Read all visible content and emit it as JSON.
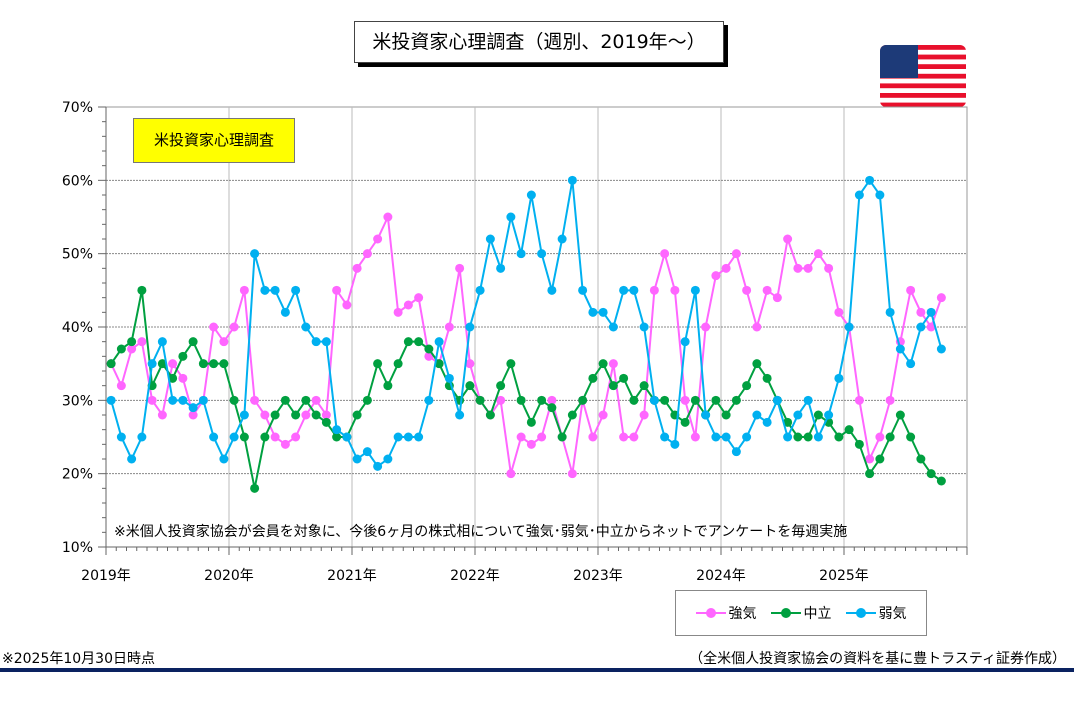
{
  "title": "米投資家心理調査（週別、2019年～）",
  "box_label": "米投資家心理調査",
  "note": "※米個人投資家協会が会員を対象に、今後6ヶ月の株式相について強気･弱気･中立からネットでアンケートを毎週実施",
  "footer_left": "※2025年10月30日時点",
  "footer_right": "（全米個人投資家協会の資料を基に豊トラスティ証券作成）",
  "chart_data": {
    "type": "line",
    "title": "米投資家心理調査（週別、2019年～）",
    "xlabel": "",
    "ylabel": "",
    "ylim": [
      10,
      70
    ],
    "yticks": [
      "10%",
      "20%",
      "30%",
      "40%",
      "50%",
      "60%",
      "70%"
    ],
    "xticks": [
      "2019年",
      "2020年",
      "2021年",
      "2022年",
      "2023年",
      "2024年",
      "2025年"
    ],
    "xlim": [
      2019,
      2026
    ],
    "start_month": "2019-01",
    "frequency": "monthly (approximate, sampled from weekly)",
    "grid": true,
    "legend_position": "bottom-right",
    "series": [
      {
        "name": "強気",
        "color": "#ff66ff",
        "values": [
          35,
          32,
          37,
          38,
          30,
          28,
          35,
          33,
          28,
          30,
          40,
          38,
          40,
          45,
          30,
          28,
          25,
          24,
          25,
          28,
          30,
          28,
          45,
          43,
          48,
          50,
          52,
          55,
          42,
          43,
          44,
          36,
          35,
          40,
          48,
          35,
          30,
          28,
          30,
          20,
          25,
          24,
          25,
          30,
          25,
          20,
          30,
          25,
          28,
          35,
          25,
          25,
          28,
          45,
          50,
          45,
          30,
          25,
          40,
          47,
          48,
          50,
          45,
          40,
          45,
          44,
          52,
          48,
          48,
          50,
          48,
          42,
          40,
          30,
          22,
          25,
          30,
          38,
          45,
          42,
          40,
          44
        ]
      },
      {
        "name": "中立",
        "color": "#00a040",
        "values": [
          35,
          37,
          38,
          45,
          32,
          35,
          33,
          36,
          38,
          35,
          35,
          35,
          30,
          25,
          18,
          25,
          28,
          30,
          28,
          30,
          28,
          27,
          25,
          25,
          28,
          30,
          35,
          32,
          35,
          38,
          38,
          37,
          35,
          32,
          30,
          32,
          30,
          28,
          32,
          35,
          30,
          27,
          30,
          29,
          25,
          28,
          30,
          33,
          35,
          32,
          33,
          30,
          32,
          30,
          30,
          28,
          27,
          30,
          28,
          30,
          28,
          30,
          32,
          35,
          33,
          30,
          27,
          25,
          25,
          28,
          27,
          25,
          26,
          24,
          20,
          22,
          25,
          28,
          25,
          22,
          20,
          19
        ]
      },
      {
        "name": "弱気",
        "color": "#00b0f0",
        "values": [
          30,
          25,
          22,
          25,
          35,
          38,
          30,
          30,
          29,
          30,
          25,
          22,
          25,
          28,
          50,
          45,
          45,
          42,
          45,
          40,
          38,
          38,
          26,
          25,
          22,
          23,
          21,
          22,
          25,
          25,
          25,
          30,
          38,
          33,
          28,
          40,
          45,
          52,
          48,
          55,
          50,
          58,
          50,
          45,
          52,
          60,
          45,
          42,
          42,
          40,
          45,
          45,
          40,
          30,
          25,
          24,
          38,
          45,
          28,
          25,
          25,
          23,
          25,
          28,
          27,
          30,
          25,
          28,
          30,
          25,
          28,
          33,
          40,
          58,
          60,
          58,
          42,
          37,
          35,
          40,
          42,
          37
        ]
      }
    ]
  }
}
